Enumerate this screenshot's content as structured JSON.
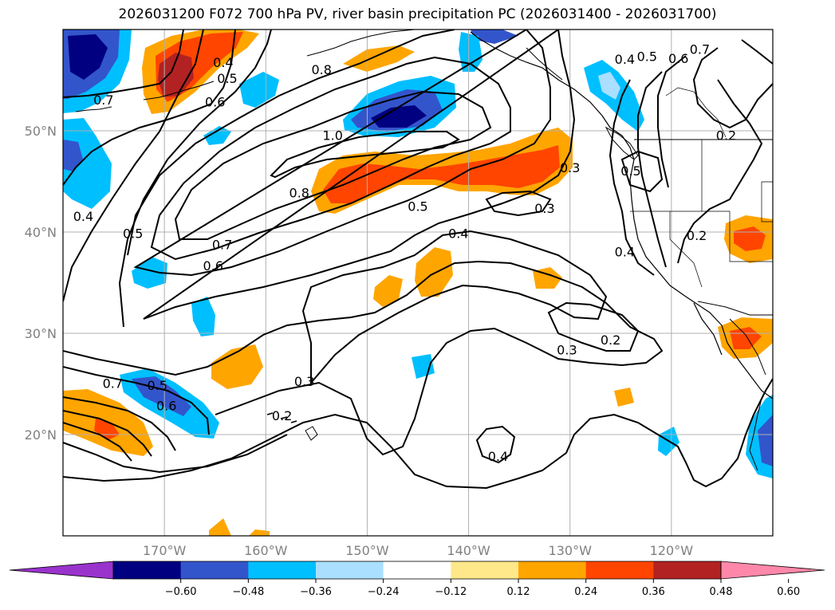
{
  "title": "2026031200 F072 700 hPa PV, river basin precipitation PC (2026031400 - 2026031700)",
  "map": {
    "lon_range": [
      -180,
      -110
    ],
    "lat_range": [
      10,
      60
    ],
    "lat_ticks": [
      {
        "value": 50,
        "label": "50°N"
      },
      {
        "value": 40,
        "label": "40°N"
      },
      {
        "value": 30,
        "label": "30°N"
      },
      {
        "value": 20,
        "label": "20°N"
      }
    ],
    "lon_ticks": [
      {
        "value": -170,
        "label": "170°W"
      },
      {
        "value": -160,
        "label": "160°W"
      },
      {
        "value": -150,
        "label": "150°W"
      },
      {
        "value": -140,
        "label": "140°W"
      },
      {
        "value": -130,
        "label": "130°W"
      },
      {
        "value": -120,
        "label": "120°W"
      }
    ],
    "grid": true
  },
  "colorbar": {
    "colors": [
      "#9933cc",
      "#000080",
      "#3355cc",
      "#00bfff",
      "#aadfff",
      "#ffffff",
      "#ffe88a",
      "#ffa500",
      "#ff4500",
      "#b22222",
      "#ff88aa"
    ],
    "ticks": [
      "−0.60",
      "−0.48",
      "−0.36",
      "−0.24",
      "−0.12",
      "0.12",
      "0.24",
      "0.36",
      "0.48",
      "0.60"
    ],
    "extend": "both"
  },
  "contour_labels": [
    {
      "text": "0.4",
      "lon": -164.2,
      "lat": 56.7
    },
    {
      "text": "0.5",
      "lon": -163.8,
      "lat": 55.1
    },
    {
      "text": "0.6",
      "lon": -165.0,
      "lat": 52.8
    },
    {
      "text": "0.7",
      "lon": -176.0,
      "lat": 53.0
    },
    {
      "text": "0.8",
      "lon": -154.5,
      "lat": 56.0
    },
    {
      "text": "1.0",
      "lon": -153.4,
      "lat": 49.5
    },
    {
      "text": "0.8",
      "lon": -156.7,
      "lat": 43.8
    },
    {
      "text": "0.7",
      "lon": -164.3,
      "lat": 38.7
    },
    {
      "text": "0.6",
      "lon": -165.2,
      "lat": 36.6
    },
    {
      "text": "0.5",
      "lon": -173.1,
      "lat": 39.8
    },
    {
      "text": "0.4",
      "lon": -178.0,
      "lat": 41.5
    },
    {
      "text": "0.5",
      "lon": -145.0,
      "lat": 42.5
    },
    {
      "text": "0.4",
      "lon": -141.0,
      "lat": 39.8
    },
    {
      "text": "0.3",
      "lon": -130.0,
      "lat": 46.3
    },
    {
      "text": "0.3",
      "lon": -132.5,
      "lat": 42.3
    },
    {
      "text": "0.4",
      "lon": -124.6,
      "lat": 38.0
    },
    {
      "text": "0.2",
      "lon": -117.5,
      "lat": 39.6
    },
    {
      "text": "0.5",
      "lon": -124.0,
      "lat": 46.0
    },
    {
      "text": "0.2",
      "lon": -114.6,
      "lat": 49.5
    },
    {
      "text": "0.4",
      "lon": -124.6,
      "lat": 57.0
    },
    {
      "text": "0.5",
      "lon": -122.4,
      "lat": 57.3
    },
    {
      "text": "0.6",
      "lon": -119.3,
      "lat": 57.1
    },
    {
      "text": "0.7",
      "lon": -117.2,
      "lat": 58.0
    },
    {
      "text": "0.2",
      "lon": -126.0,
      "lat": 29.3
    },
    {
      "text": "0.3",
      "lon": -130.3,
      "lat": 28.3
    },
    {
      "text": "0.3",
      "lon": -156.2,
      "lat": 25.2
    },
    {
      "text": "0.2",
      "lon": -158.4,
      "lat": 21.8
    },
    {
      "text": "0.4",
      "lon": -137.1,
      "lat": 17.8
    },
    {
      "text": "0.7",
      "lon": -175.1,
      "lat": 25.0
    },
    {
      "text": "0.5",
      "lon": -170.7,
      "lat": 24.8
    },
    {
      "text": "0.6",
      "lon": -169.8,
      "lat": 22.8
    }
  ]
}
